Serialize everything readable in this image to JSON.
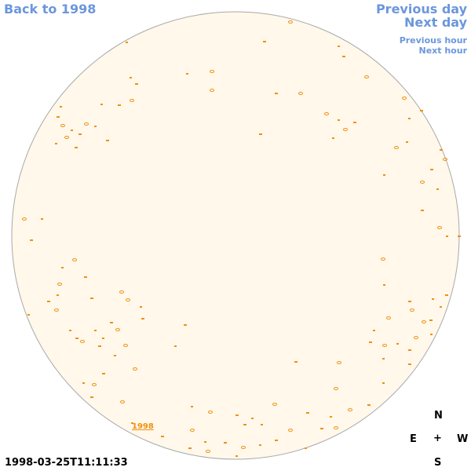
{
  "nav": {
    "back": "Back to 1998",
    "previous_day": "Previous day",
    "next_day": "Next day",
    "previous_hour": "Previous hour",
    "next_hour": "Next hour"
  },
  "disk_label": "1998",
  "compass": {
    "north": "N",
    "east": "E",
    "center": "+",
    "west": "W",
    "south": "S"
  },
  "timestamp": "1998-03-25T11:11:33"
}
